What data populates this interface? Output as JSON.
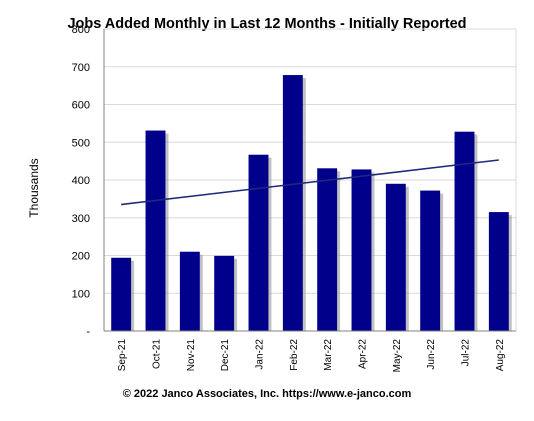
{
  "chart_data": {
    "type": "bar",
    "title": "Jobs Added Monthly in Last 12 Months - Initially Reported",
    "ylabel": "Thousands",
    "xlabel": "",
    "categories": [
      "Sep-21",
      "Oct-21",
      "Nov-21",
      "Dec-21",
      "Jan-22",
      "Feb-22",
      "Mar-22",
      "Apr-22",
      "May-22",
      "Jun-22",
      "Jul-22",
      "Aug-22"
    ],
    "values": [
      194,
      531,
      210,
      199,
      467,
      678,
      431,
      428,
      390,
      372,
      528,
      315
    ],
    "ylim": [
      0,
      800
    ],
    "yticks": [
      0,
      100,
      200,
      300,
      400,
      500,
      600,
      700,
      800
    ],
    "ytick_labels": [
      "-",
      "100",
      "200",
      "300",
      "400",
      "500",
      "600",
      "700",
      "800"
    ],
    "trendline": {
      "type": "linear",
      "start": 335,
      "end": 453
    },
    "grid": true,
    "legend": "none",
    "colors": {
      "bar": "#00008B",
      "trend": "#1F2A7A",
      "grid": "#D9D9D9"
    }
  },
  "footer": {
    "credit": "© 2022 Janco Associates, Inc. https://www.e-janco.com"
  }
}
